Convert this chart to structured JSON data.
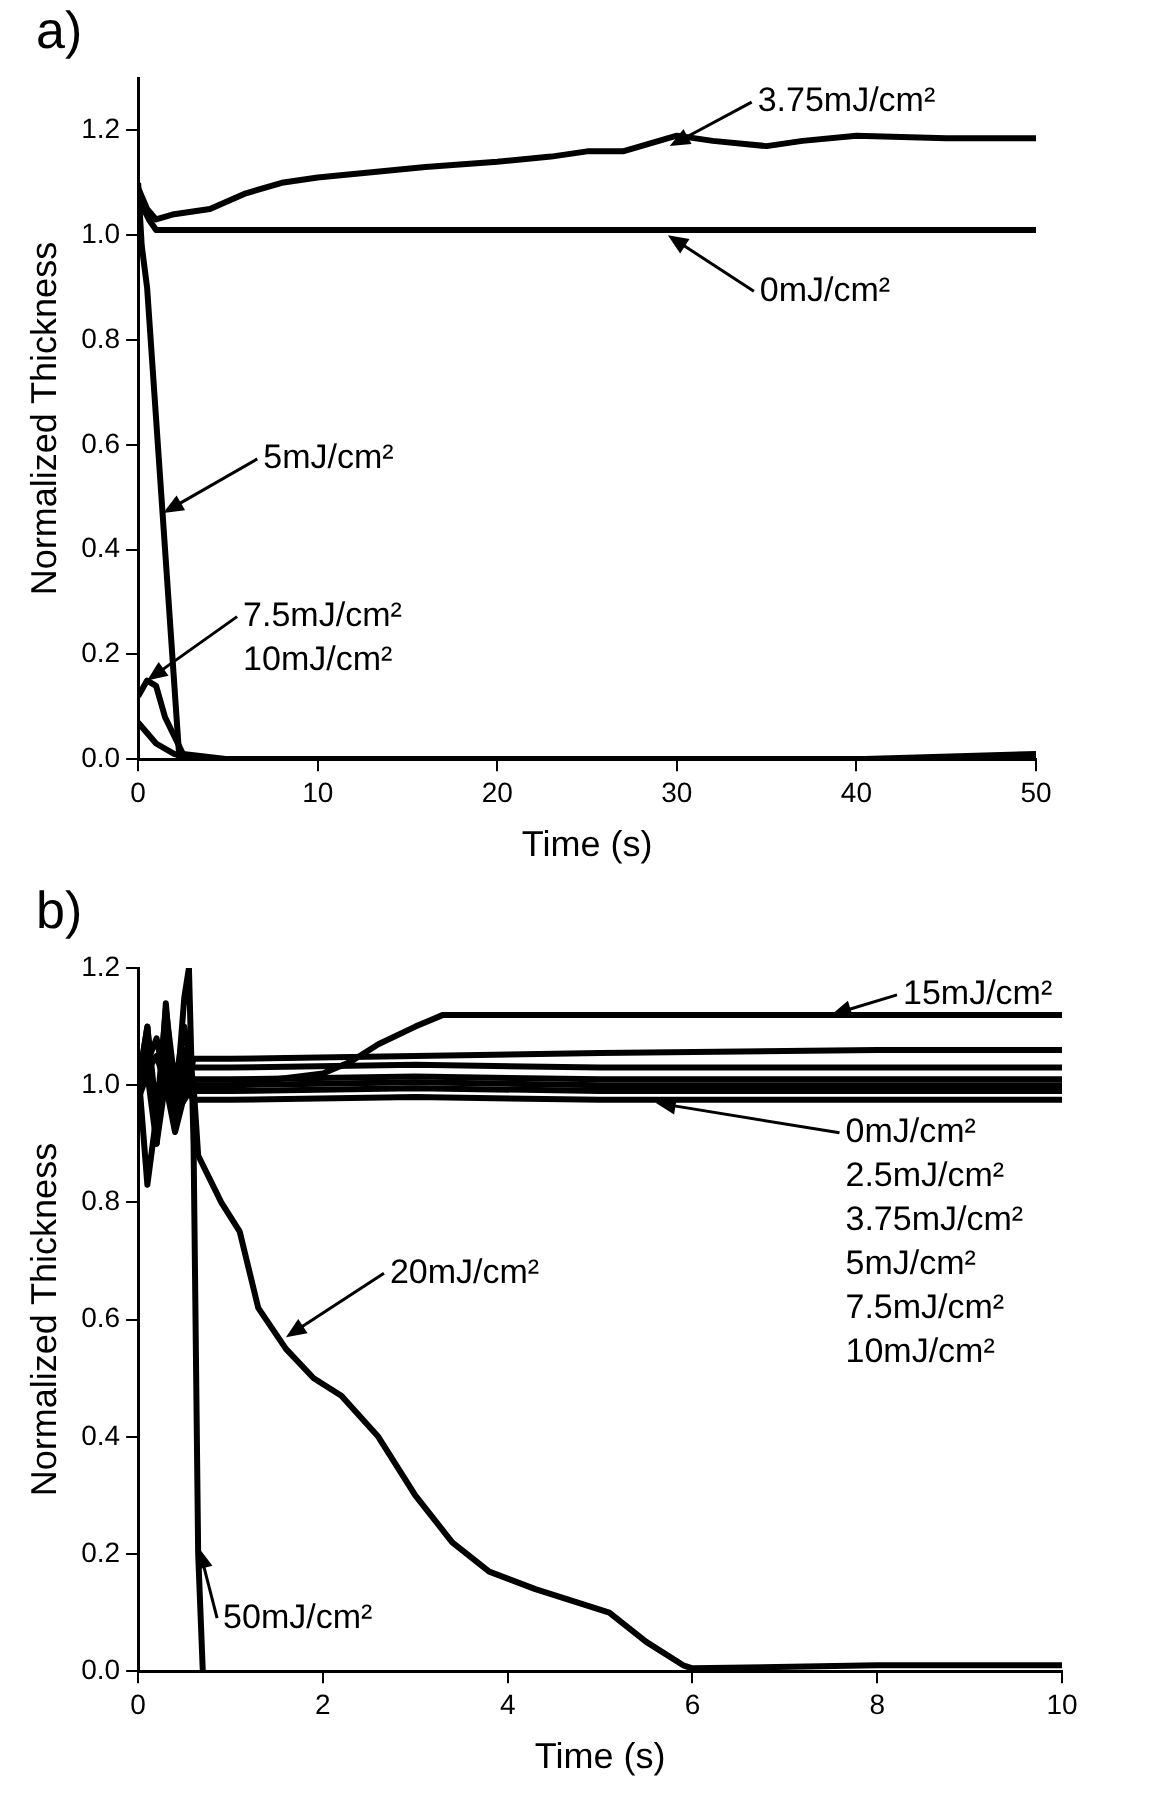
{
  "chart_data": [
    {
      "type": "line",
      "title": "a)",
      "xlabel": "Time (s)",
      "ylabel": "Normalized Thickness",
      "xlim": [
        0,
        50
      ],
      "xticks": [
        0,
        10,
        20,
        30,
        40,
        50
      ],
      "ylim": [
        0,
        1.3
      ],
      "yticks": [
        {
          "value": 0,
          "label": "0.0"
        },
        {
          "value": 0.2,
          "label": "0.2"
        },
        {
          "value": 0.4,
          "label": "0.4"
        },
        {
          "value": 0.6,
          "label": "0.6"
        },
        {
          "value": 0.8,
          "label": "0.8"
        },
        {
          "value": 1,
          "label": "1.0"
        },
        {
          "value": 1.2,
          "label": "1.2"
        }
      ],
      "annotations": [
        {
          "text": "3.75mJ/cm²",
          "x": 29.6,
          "y": 1.17
        },
        {
          "text": "0mJ/cm²",
          "x": 29.5,
          "y": 1.0
        },
        {
          "text": "5mJ/cm²",
          "x": 1.4,
          "y": 0.47
        },
        {
          "text": "7.5mJ/cm²\n10mJ/cm²",
          "x": 0.5,
          "y": 0.15
        }
      ],
      "series": [
        {
          "color": "#000000",
          "x": [
            0,
            0.3,
            0.6,
            1,
            2,
            5,
            10,
            20,
            30,
            40,
            50
          ],
          "values": [
            1.08,
            1.05,
            1.03,
            1.01,
            1.01,
            1.01,
            1.01,
            1.01,
            1.01,
            1.01,
            1.01
          ]
        },
        {
          "color": "#000000",
          "x": [
            0,
            0.5,
            1,
            2,
            4,
            6,
            8,
            10,
            13,
            16,
            20,
            23,
            25,
            27,
            29,
            30,
            32,
            35,
            37,
            40,
            45,
            50
          ],
          "values": [
            1.09,
            1.05,
            1.03,
            1.04,
            1.05,
            1.08,
            1.1,
            1.11,
            1.12,
            1.13,
            1.14,
            1.15,
            1.16,
            1.16,
            1.18,
            1.19,
            1.18,
            1.17,
            1.18,
            1.19,
            1.185,
            1.185
          ]
        },
        {
          "color": "#000000",
          "x": [
            0,
            0.2,
            0.5,
            2.3,
            3,
            10,
            20,
            30,
            40,
            50
          ],
          "values": [
            1.1,
            0.98,
            0.9,
            0,
            0,
            0,
            0,
            0,
            0,
            0.01
          ]
        },
        {
          "color": "#000000",
          "x": [
            0,
            0.5,
            1,
            1.5,
            2.5,
            5,
            50
          ],
          "values": [
            0.12,
            0.15,
            0.14,
            0.08,
            0.01,
            0,
            0
          ]
        },
        {
          "color": "#000000",
          "x": [
            0,
            0.5,
            1,
            2,
            3,
            50
          ],
          "values": [
            0.07,
            0.05,
            0.03,
            0.01,
            0,
            0
          ]
        }
      ]
    },
    {
      "type": "line",
      "title": "b)",
      "xlabel": "Time (s)",
      "ylabel": "Normalized Thickness",
      "xlim": [
        0,
        10
      ],
      "xticks": [
        0,
        2,
        4,
        6,
        8,
        10
      ],
      "ylim": [
        0,
        1.2
      ],
      "yticks": [
        {
          "value": 0,
          "label": "0.0"
        },
        {
          "value": 0.2,
          "label": "0.2"
        },
        {
          "value": 0.4,
          "label": "0.4"
        },
        {
          "value": 0.6,
          "label": "0.6"
        },
        {
          "value": 0.8,
          "label": "0.8"
        },
        {
          "value": 1,
          "label": "1.0"
        },
        {
          "value": 1.2,
          "label": "1.2"
        }
      ],
      "annotations": [
        {
          "text": "15mJ/cm²",
          "x": 7.5,
          "y": 1.12
        },
        {
          "text": "0mJ/cm²\n2.5mJ/cm²\n3.75mJ/cm²\n5mJ/cm²\n7.5mJ/cm²\n10mJ/cm²",
          "x": 5.6,
          "y": 0.97
        },
        {
          "text": "20mJ/cm²",
          "x": 1.6,
          "y": 0.57
        },
        {
          "text": "50mJ/cm²",
          "x": 0.66,
          "y": 0.21
        }
      ],
      "series": [
        {
          "color": "#000000",
          "x": [
            0,
            0.1,
            0.2,
            0.3,
            0.4,
            0.5,
            0.6,
            1,
            1.5,
            2,
            2.3,
            2.6,
            3,
            3.3,
            3.6,
            5,
            7,
            10
          ],
          "values": [
            1.0,
            1.1,
            0.95,
            1.13,
            1.0,
            1.1,
            1.0,
            1.0,
            1.01,
            1.02,
            1.04,
            1.07,
            1.1,
            1.12,
            1.12,
            1.12,
            1.12,
            1.12
          ]
        },
        {
          "color": "#000000",
          "x": [
            0,
            0.2,
            0.4,
            0.6,
            1,
            3,
            5,
            8,
            10
          ],
          "values": [
            1.0,
            1.08,
            0.92,
            1.045,
            1.045,
            1.05,
            1.055,
            1.06,
            1.06
          ]
        },
        {
          "color": "#000000",
          "x": [
            0,
            0.1,
            0.2,
            0.3,
            0.4,
            0.5,
            0.6,
            1,
            3,
            5,
            8,
            10
          ],
          "values": [
            1.03,
            0.83,
            0.95,
            1.07,
            0.98,
            1.06,
            1.03,
            1.03,
            1.035,
            1.03,
            1.03,
            1.03
          ]
        },
        {
          "color": "#000000",
          "x": [
            0,
            0.1,
            0.2,
            0.3,
            0.4,
            0.5,
            0.6,
            1,
            3,
            5,
            8,
            10
          ],
          "values": [
            1.01,
            1.06,
            0.93,
            1.05,
            0.96,
            1.04,
            1.01,
            1.01,
            1.015,
            1.01,
            1.01,
            1.01
          ]
        },
        {
          "color": "#000000",
          "x": [
            0,
            0.1,
            0.2,
            0.3,
            0.4,
            0.5,
            0.6,
            1,
            3,
            5,
            8,
            10
          ],
          "values": [
            1.0,
            1.05,
            0.92,
            1.04,
            0.95,
            1.03,
            1.0,
            1.0,
            1.005,
            1.0,
            1.0,
            1.0
          ]
        },
        {
          "color": "#000000",
          "x": [
            0,
            0.1,
            0.2,
            0.3,
            0.4,
            0.5,
            0.6,
            1,
            3,
            5,
            8,
            10
          ],
          "values": [
            0.99,
            1.04,
            0.91,
            1.03,
            0.94,
            1.02,
            0.99,
            0.99,
            0.995,
            0.99,
            0.99,
            0.99
          ]
        },
        {
          "color": "#000000",
          "x": [
            0,
            0.1,
            0.2,
            0.3,
            0.4,
            0.5,
            0.6,
            1,
            3,
            5,
            8,
            10
          ],
          "values": [
            0.975,
            1.02,
            0.9,
            1.01,
            0.93,
            1.0,
            0.975,
            0.975,
            0.98,
            0.975,
            0.975,
            0.975
          ]
        },
        {
          "color": "#000000",
          "x": [
            0,
            0.2,
            0.4,
            0.6,
            0.65,
            0.9,
            1.1,
            1.3,
            1.6,
            1.9,
            2.2,
            2.6,
            3.0,
            3.4,
            3.8,
            4.3,
            4.7,
            5.1,
            5.5,
            5.9,
            6,
            8,
            10
          ],
          "values": [
            1.0,
            1.05,
            0.95,
            1.0,
            0.88,
            0.8,
            0.75,
            0.62,
            0.55,
            0.5,
            0.47,
            0.4,
            0.3,
            0.22,
            0.17,
            0.14,
            0.12,
            0.1,
            0.05,
            0.01,
            0.005,
            0.01,
            0.01
          ]
        },
        {
          "color": "#000000",
          "x": [
            0,
            0.1,
            0.2,
            0.3,
            0.4,
            0.5,
            0.55,
            0.6,
            0.65,
            0.7
          ],
          "values": [
            1.0,
            1.1,
            0.9,
            1.14,
            0.95,
            1.15,
            1.2,
            0.9,
            0.2,
            0
          ]
        }
      ]
    }
  ]
}
